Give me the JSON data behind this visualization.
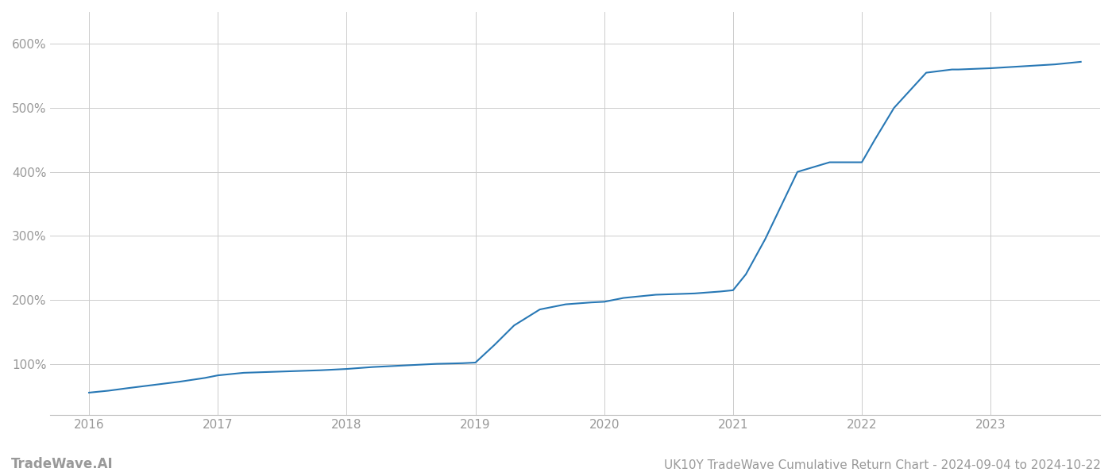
{
  "title": "UK10Y TradeWave Cumulative Return Chart - 2024-09-04 to 2024-10-22",
  "watermark": "TradeWave.AI",
  "line_color": "#2878b5",
  "line_width": 1.5,
  "background_color": "#ffffff",
  "grid_color": "#cccccc",
  "x_values": [
    2016.0,
    2016.15,
    2016.3,
    2016.5,
    2016.7,
    2016.9,
    2017.0,
    2017.2,
    2017.5,
    2017.8,
    2018.0,
    2018.2,
    2018.5,
    2018.7,
    2018.9,
    2019.0,
    2019.15,
    2019.3,
    2019.5,
    2019.7,
    2019.9,
    2020.0,
    2020.15,
    2020.4,
    2020.7,
    2020.9,
    2021.0,
    2021.1,
    2021.25,
    2021.5,
    2021.75,
    2022.0,
    2022.1,
    2022.25,
    2022.5,
    2022.7,
    2022.75,
    2023.0,
    2023.25,
    2023.5,
    2023.7
  ],
  "y_values": [
    55,
    58,
    62,
    67,
    72,
    78,
    82,
    86,
    88,
    90,
    92,
    95,
    98,
    100,
    101,
    102,
    130,
    160,
    185,
    193,
    196,
    197,
    203,
    208,
    210,
    213,
    215,
    240,
    295,
    400,
    415,
    415,
    450,
    500,
    555,
    560,
    560,
    562,
    565,
    568,
    572
  ],
  "xlim": [
    2015.7,
    2023.85
  ],
  "ylim": [
    20,
    650
  ],
  "yticks": [
    100,
    200,
    300,
    400,
    500,
    600
  ],
  "ytick_labels": [
    "100%",
    "200%",
    "300%",
    "400%",
    "500%",
    "600%"
  ],
  "xticks": [
    2016,
    2017,
    2018,
    2019,
    2020,
    2021,
    2022,
    2023
  ],
  "xtick_labels": [
    "2016",
    "2017",
    "2018",
    "2019",
    "2020",
    "2021",
    "2022",
    "2023"
  ],
  "tick_color": "#999999",
  "label_fontsize": 11,
  "title_fontsize": 11,
  "watermark_fontsize": 12
}
